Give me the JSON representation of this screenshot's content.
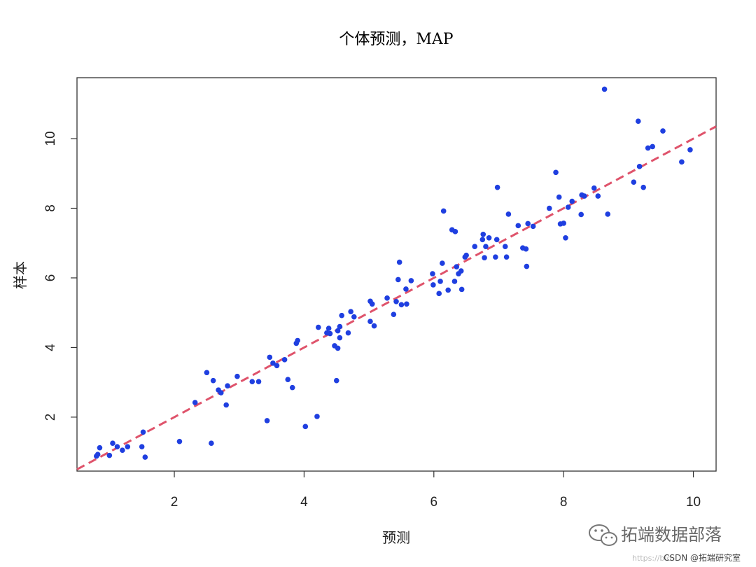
{
  "chart_data": {
    "type": "scatter",
    "title": "个体预测，MAP",
    "xlabel": "预测",
    "ylabel": "样本",
    "xlim": [
      0.5,
      10.35
    ],
    "ylim": [
      0.45,
      11.75
    ],
    "xticks": [
      2,
      4,
      6,
      8,
      10
    ],
    "yticks": [
      2,
      4,
      6,
      8,
      10
    ],
    "grid": false,
    "point_color": "#1f3fe0",
    "reference_line": {
      "slope": 1,
      "intercept": 0,
      "style": "dashed",
      "color": "#df536b"
    },
    "points": [
      [
        0.8,
        0.88
      ],
      [
        0.82,
        0.93
      ],
      [
        0.85,
        1.12
      ],
      [
        1.0,
        0.9
      ],
      [
        1.05,
        1.25
      ],
      [
        1.12,
        1.15
      ],
      [
        1.2,
        1.05
      ],
      [
        1.28,
        1.15
      ],
      [
        1.5,
        1.15
      ],
      [
        1.52,
        1.57
      ],
      [
        1.55,
        0.85
      ],
      [
        2.08,
        1.3
      ],
      [
        2.32,
        2.42
      ],
      [
        2.5,
        3.28
      ],
      [
        2.57,
        1.25
      ],
      [
        2.6,
        3.05
      ],
      [
        2.68,
        2.78
      ],
      [
        2.72,
        2.7
      ],
      [
        2.8,
        2.35
      ],
      [
        2.82,
        2.9
      ],
      [
        2.97,
        3.17
      ],
      [
        3.2,
        3.02
      ],
      [
        3.3,
        3.02
      ],
      [
        3.43,
        1.9
      ],
      [
        3.47,
        3.72
      ],
      [
        3.52,
        3.55
      ],
      [
        3.58,
        3.48
      ],
      [
        3.7,
        3.65
      ],
      [
        3.75,
        3.08
      ],
      [
        3.82,
        2.85
      ],
      [
        3.88,
        4.12
      ],
      [
        3.9,
        4.2
      ],
      [
        4.02,
        1.73
      ],
      [
        4.2,
        2.02
      ],
      [
        4.22,
        4.58
      ],
      [
        4.35,
        4.42
      ],
      [
        4.38,
        4.55
      ],
      [
        4.4,
        4.4
      ],
      [
        4.47,
        4.05
      ],
      [
        4.5,
        3.05
      ],
      [
        4.52,
        4.48
      ],
      [
        4.52,
        3.98
      ],
      [
        4.55,
        4.6
      ],
      [
        4.55,
        4.28
      ],
      [
        4.58,
        4.92
      ],
      [
        4.68,
        4.42
      ],
      [
        4.72,
        5.03
      ],
      [
        4.77,
        4.88
      ],
      [
        5.02,
        5.33
      ],
      [
        5.02,
        4.75
      ],
      [
        5.05,
        5.25
      ],
      [
        5.08,
        4.62
      ],
      [
        5.28,
        5.42
      ],
      [
        5.38,
        4.95
      ],
      [
        5.42,
        5.32
      ],
      [
        5.45,
        5.95
      ],
      [
        5.47,
        6.45
      ],
      [
        5.5,
        5.23
      ],
      [
        5.57,
        5.68
      ],
      [
        5.58,
        5.25
      ],
      [
        5.65,
        5.92
      ],
      [
        5.98,
        6.12
      ],
      [
        5.99,
        5.8
      ],
      [
        6.08,
        5.55
      ],
      [
        6.1,
        5.9
      ],
      [
        6.13,
        6.42
      ],
      [
        6.15,
        7.92
      ],
      [
        6.22,
        5.65
      ],
      [
        6.28,
        7.38
      ],
      [
        6.32,
        5.9
      ],
      [
        6.33,
        7.33
      ],
      [
        6.35,
        6.32
      ],
      [
        6.38,
        6.12
      ],
      [
        6.42,
        6.2
      ],
      [
        6.43,
        5.67
      ],
      [
        6.48,
        6.6
      ],
      [
        6.5,
        6.65
      ],
      [
        6.63,
        6.9
      ],
      [
        6.75,
        7.1
      ],
      [
        6.76,
        7.25
      ],
      [
        6.78,
        6.58
      ],
      [
        6.8,
        6.9
      ],
      [
        6.85,
        7.15
      ],
      [
        6.95,
        6.6
      ],
      [
        6.97,
        7.1
      ],
      [
        6.98,
        8.6
      ],
      [
        7.1,
        6.9
      ],
      [
        7.12,
        6.6
      ],
      [
        7.15,
        7.83
      ],
      [
        7.3,
        7.5
      ],
      [
        7.37,
        6.86
      ],
      [
        7.42,
        6.83
      ],
      [
        7.43,
        6.33
      ],
      [
        7.45,
        7.56
      ],
      [
        7.53,
        7.48
      ],
      [
        7.78,
        8.0
      ],
      [
        7.88,
        9.03
      ],
      [
        7.93,
        8.32
      ],
      [
        7.95,
        7.55
      ],
      [
        8.0,
        7.57
      ],
      [
        8.03,
        7.15
      ],
      [
        8.07,
        8.03
      ],
      [
        8.13,
        8.2
      ],
      [
        8.27,
        7.82
      ],
      [
        8.28,
        8.38
      ],
      [
        8.32,
        8.35
      ],
      [
        8.47,
        8.58
      ],
      [
        8.53,
        8.35
      ],
      [
        8.63,
        11.42
      ],
      [
        8.68,
        7.83
      ],
      [
        9.08,
        8.75
      ],
      [
        9.15,
        10.5
      ],
      [
        9.17,
        9.2
      ],
      [
        9.23,
        8.6
      ],
      [
        9.3,
        9.73
      ],
      [
        9.37,
        9.77
      ],
      [
        9.53,
        10.22
      ],
      [
        9.82,
        9.33
      ],
      [
        9.95,
        9.68
      ]
    ]
  },
  "watermark": {
    "brand": "拓端数据部落",
    "csdn": "CSDN @拓端研究室",
    "url_fragment": "https://blo"
  }
}
